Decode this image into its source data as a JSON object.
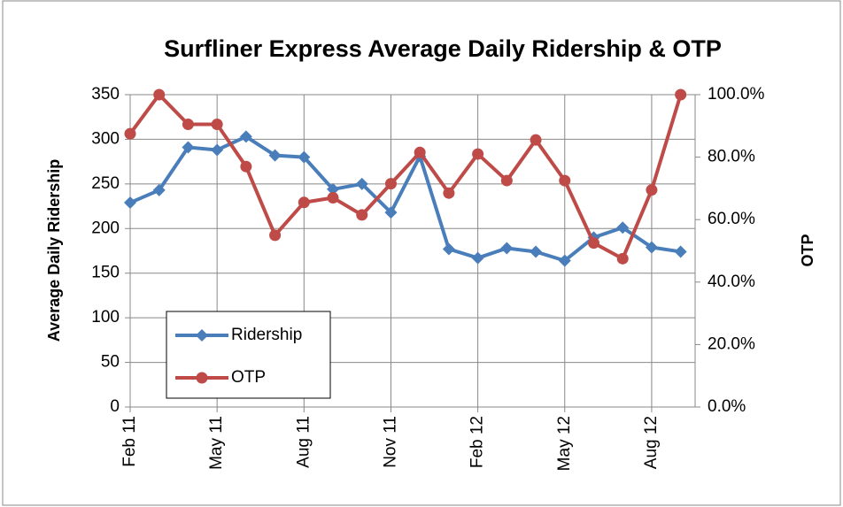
{
  "chart_data": {
    "type": "line",
    "title": "Surfliner Express Average Daily Ridership & OTP",
    "y_label": "Average Daily Ridership",
    "y2_label": "OTP",
    "categories": [
      "Feb 11",
      null,
      null,
      "May 11",
      null,
      null,
      "Aug 11",
      null,
      null,
      "Nov 11",
      null,
      null,
      "Feb 12",
      null,
      null,
      "May 12",
      null,
      null,
      "Aug 12",
      null
    ],
    "series": [
      {
        "name": "Ridership",
        "color": "#4a7ebb",
        "marker": "diamond",
        "values": [
          229,
          243,
          291,
          288,
          303,
          282,
          280,
          244,
          250,
          218,
          281,
          177,
          167,
          178,
          174,
          164,
          190,
          201,
          179,
          174
        ]
      },
      {
        "name": "OTP",
        "color": "#be4b48",
        "marker": "circle",
        "axis": "y2",
        "values": [
          87.5,
          100,
          90.5,
          90.5,
          77,
          55,
          65.5,
          67,
          61.5,
          71.5,
          81.5,
          68.5,
          81,
          72.5,
          85.5,
          72.5,
          52.5,
          47.5,
          69.5,
          100
        ]
      }
    ],
    "ylim": [
      0,
      350
    ],
    "yticks": [
      0,
      50,
      100,
      150,
      200,
      250,
      300,
      350
    ],
    "y2lim": [
      0,
      100
    ],
    "y2ticks": [
      {
        "value": 0,
        "label": "0.0%"
      },
      {
        "value": 20,
        "label": "20.0%"
      },
      {
        "value": 40,
        "label": "40.0%"
      },
      {
        "value": 60,
        "label": "60.0%"
      },
      {
        "value": 80,
        "label": "80.0%"
      },
      {
        "value": 100,
        "label": "100.0%"
      }
    ],
    "grid": true,
    "legend": "lower left"
  }
}
